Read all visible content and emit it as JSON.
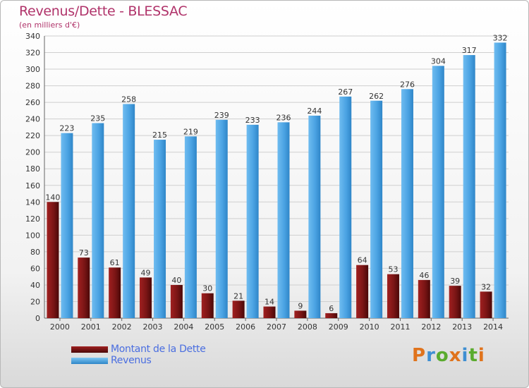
{
  "header": {
    "title": "Revenus/Dette - BLESSAC",
    "subtitle": "(en milliers d'€)"
  },
  "legend": {
    "items": [
      {
        "label": "Montant de la Dette",
        "color": "#7a1515"
      },
      {
        "label": "Revenus",
        "color": "#4ba3e3"
      }
    ]
  },
  "logo": {
    "text": "Proxiti",
    "letters": [
      {
        "ch": "P",
        "color": "#e0731c"
      },
      {
        "ch": "r",
        "color": "#3f8fd2"
      },
      {
        "ch": "o",
        "color": "#5aab2e"
      },
      {
        "ch": "x",
        "color": "#e0731c"
      },
      {
        "ch": "i",
        "color": "#3f8fd2"
      },
      {
        "ch": "t",
        "color": "#5aab2e"
      },
      {
        "ch": "i",
        "color": "#e0731c"
      }
    ]
  },
  "chart_data": {
    "type": "bar",
    "title": "Revenus/Dette - BLESSAC",
    "subtitle": "(en milliers d'€)",
    "xlabel": "",
    "ylabel": "",
    "ylim": [
      0,
      340
    ],
    "ytick_step": 20,
    "grid": true,
    "legend_position": "bottom-left",
    "categories": [
      "2000",
      "2001",
      "2002",
      "2003",
      "2004",
      "2005",
      "2006",
      "2007",
      "2008",
      "2009",
      "2010",
      "2011",
      "2012",
      "2013",
      "2014"
    ],
    "series": [
      {
        "name": "Montant de la Dette",
        "color": "#7a1515",
        "values": [
          140,
          73,
          61,
          49,
          40,
          30,
          21,
          14,
          9,
          6,
          64,
          53,
          46,
          39,
          32
        ]
      },
      {
        "name": "Revenus",
        "color": "#4ba3e3",
        "values": [
          223,
          235,
          258,
          215,
          219,
          239,
          233,
          236,
          244,
          267,
          262,
          276,
          304,
          317,
          332
        ]
      }
    ]
  }
}
